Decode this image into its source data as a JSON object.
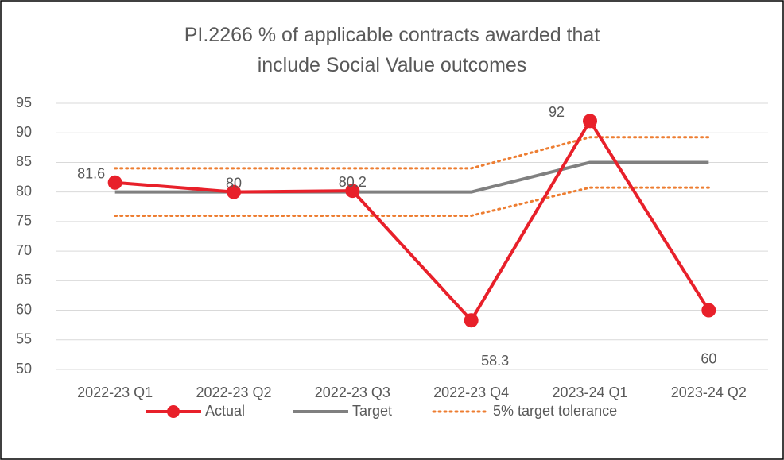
{
  "chart_data": {
    "type": "line",
    "title": "PI.2266 % of applicable contracts awarded that include Social Value outcomes",
    "categories": [
      "2022-23 Q1",
      "2022-23 Q2",
      "2022-23 Q3",
      "2022-23 Q4",
      "2023-24 Q1",
      "2023-24 Q2"
    ],
    "series": [
      {
        "name": "Actual",
        "color": "#e8202a",
        "values": [
          81.6,
          80,
          80.2,
          58.3,
          92,
          60
        ],
        "markers": true,
        "data_labels": true
      },
      {
        "name": "Target",
        "color": "#808080",
        "values": [
          80,
          80,
          80,
          80,
          85,
          85
        ]
      },
      {
        "name": "5% target tolerance",
        "color": "#ed7d31",
        "dotted": true,
        "values": [
          84,
          84,
          84,
          84,
          89.25,
          89.25
        ],
        "lower_values": [
          76,
          76,
          76,
          76,
          80.75,
          80.75
        ]
      }
    ],
    "ylim": [
      50,
      95
    ],
    "yticks": [
      50,
      55,
      60,
      65,
      70,
      75,
      80,
      85,
      90,
      95
    ],
    "grid": true,
    "legend": "bottom"
  }
}
